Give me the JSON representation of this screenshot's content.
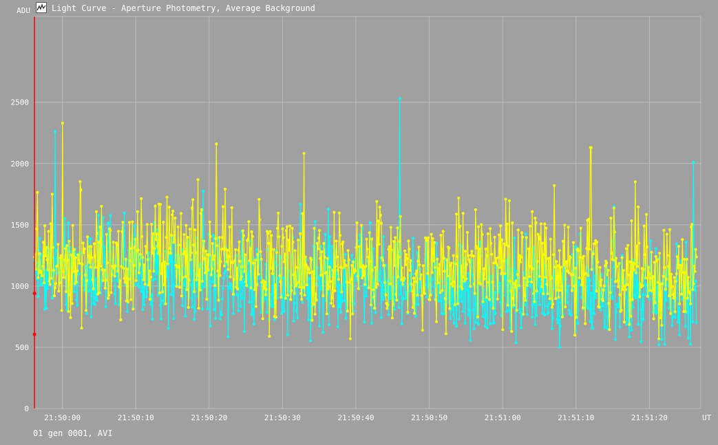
{
  "window": {
    "title": "Light Curve - Aperture Photometry, Average Background",
    "icon": "light-curve-app-icon"
  },
  "footer": {
    "status": "01 gen 0001, AVI"
  },
  "colors": {
    "background": "#a0a0a0",
    "grid": "#bdbdbd",
    "series_a": "#00ffff",
    "series_b": "#ffff00",
    "cursor": "#ff0000",
    "text": "#ffffff"
  },
  "chart_data": {
    "type": "line",
    "ylabel": "ADU",
    "xlabel": "UT",
    "ylim": [
      0,
      3200
    ],
    "yticks": [
      0,
      500,
      1000,
      1500,
      2000,
      2500
    ],
    "xlim": [
      "21:49:56",
      "21:51:27"
    ],
    "xticks": [
      "21:50:00",
      "21:50:10",
      "21:50:20",
      "21:50:30",
      "21:50:40",
      "21:50:50",
      "21:51:00",
      "21:51:10",
      "21:51:20"
    ],
    "grid": true,
    "cursor": {
      "time": "21:49:56.2",
      "markers": [
        940,
        605
      ]
    },
    "series": [
      {
        "color": "#00ffff",
        "mean_start": 1150,
        "mean_end": 900,
        "noise": 320,
        "min": 180,
        "max": 2540,
        "points_count": 900,
        "notable_peaks": [
          {
            "time": "21:50:46",
            "value": 2530
          },
          {
            "time": "21:49:59",
            "value": 2260
          },
          {
            "time": "21:51:26",
            "value": 2010
          }
        ]
      },
      {
        "color": "#ffff00",
        "mean_start": 1250,
        "mean_end": 1100,
        "noise": 380,
        "min": 190,
        "max": 2340,
        "points_count": 900,
        "notable_peaks": [
          {
            "time": "21:50:00",
            "value": 2330
          },
          {
            "time": "21:50:21",
            "value": 2160
          },
          {
            "time": "21:51:12",
            "value": 2130
          }
        ]
      }
    ]
  }
}
